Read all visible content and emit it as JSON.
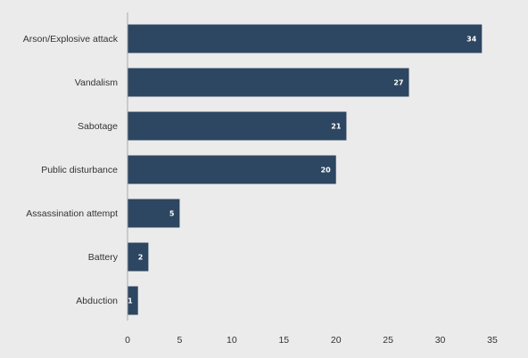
{
  "chart_data": {
    "type": "bar",
    "orientation": "horizontal",
    "categories": [
      "Arson/Explosive attack",
      "Vandalism",
      "Sabotage",
      "Public disturbance",
      "Assassination attempt",
      "Battery",
      "Abduction"
    ],
    "values": [
      34,
      27,
      21,
      20,
      5,
      2,
      1
    ],
    "title": "",
    "xlabel": "",
    "ylabel": "",
    "xlim": [
      0,
      35
    ],
    "x_ticks": [
      0,
      5,
      10,
      15,
      20,
      25,
      30,
      35
    ],
    "grid": false,
    "legend": "none",
    "data_labels": true
  },
  "colors": {
    "background": "#ebebeb",
    "bar": "#2d4661",
    "axis": "#aaaaaa",
    "label_text": "#333333",
    "data_label_text": "#ffffff"
  }
}
